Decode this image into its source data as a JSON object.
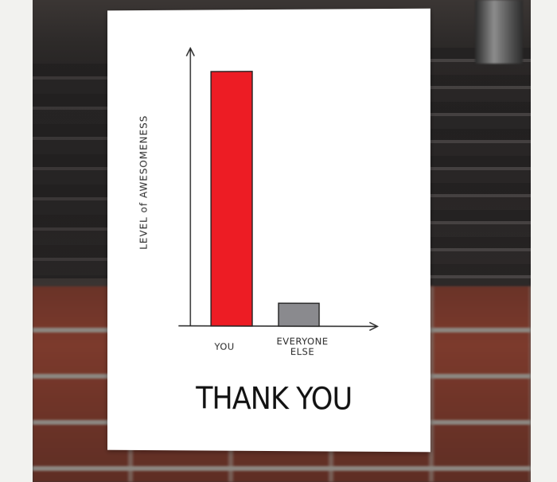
{
  "card": {
    "message": "THANK YOU"
  },
  "chart_data": {
    "type": "bar",
    "title": "",
    "xlabel": "",
    "ylabel": "LEVEL of AWESOMENESS",
    "categories": [
      "YOU",
      "EVERYONE\nELSE"
    ],
    "values": [
      100,
      9
    ],
    "ylim": [
      0,
      108
    ],
    "bar_colors": [
      "#ed1c24",
      "#8a8a8e"
    ],
    "grid": false,
    "legend": "none"
  }
}
